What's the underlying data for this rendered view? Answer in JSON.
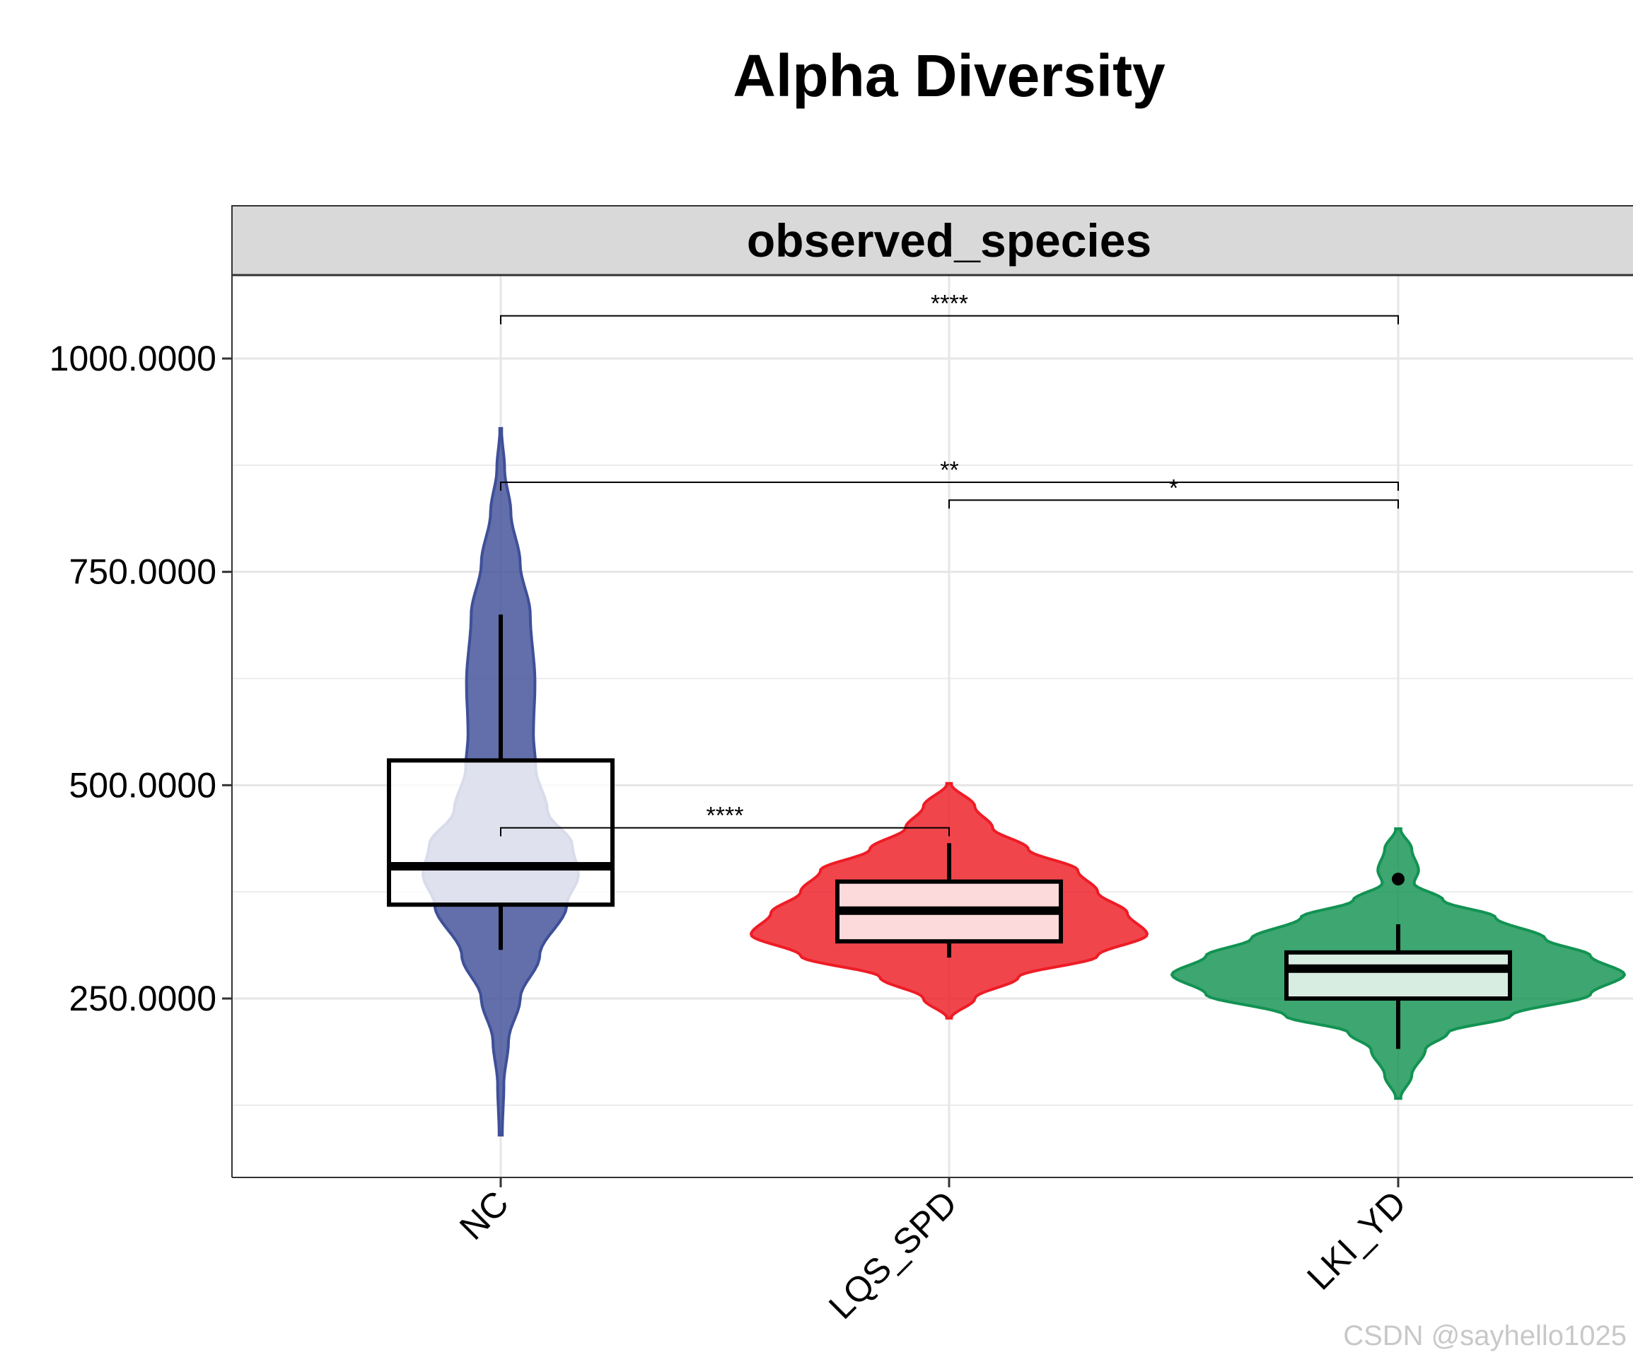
{
  "title": "Alpha Diversity",
  "watermark": "CSDN @sayhello1025",
  "chart_data": {
    "type": "violin",
    "title": "Alpha Diversity",
    "facet_label": "observed_species",
    "xlabel": "",
    "ylabel": "",
    "ylim": [
      47,
      1105
    ],
    "yticks": [
      250,
      500,
      750,
      1000
    ],
    "ytick_labels": [
      "250.0000",
      "500.0000",
      "750.0000",
      "1000.0000"
    ],
    "grid": true,
    "legend": "none",
    "categories": [
      "NC",
      "LQS_SPD",
      "LKI_YD"
    ],
    "colors": [
      "#3f4f98",
      "#ee1c25",
      "#129352"
    ],
    "groups": [
      {
        "name": "NC",
        "violin_min": 90,
        "violin_max": 918,
        "density": [
          [
            90,
            0.02
          ],
          [
            150,
            0.04
          ],
          [
            200,
            0.1
          ],
          [
            250,
            0.25
          ],
          [
            300,
            0.5
          ],
          [
            360,
            0.85
          ],
          [
            395,
            1.0
          ],
          [
            430,
            0.92
          ],
          [
            470,
            0.6
          ],
          [
            520,
            0.45
          ],
          [
            560,
            0.42
          ],
          [
            620,
            0.44
          ],
          [
            700,
            0.38
          ],
          [
            760,
            0.25
          ],
          [
            820,
            0.13
          ],
          [
            870,
            0.05
          ],
          [
            918,
            0.01
          ]
        ],
        "box": {
          "whisker_low": 307,
          "q1": 360,
          "median": 405,
          "q3": 529,
          "whisker_high": 700
        },
        "outliers": []
      },
      {
        "name": "LQS_SPD",
        "violin_min": 227,
        "violin_max": 502,
        "density": [
          [
            227,
            0.01
          ],
          [
            250,
            0.13
          ],
          [
            275,
            0.35
          ],
          [
            300,
            0.75
          ],
          [
            325,
            1.0
          ],
          [
            350,
            0.9
          ],
          [
            375,
            0.75
          ],
          [
            400,
            0.65
          ],
          [
            425,
            0.4
          ],
          [
            450,
            0.22
          ],
          [
            475,
            0.13
          ],
          [
            502,
            0.01
          ]
        ],
        "box": {
          "whisker_low": 298,
          "q1": 317,
          "median": 353,
          "q3": 387,
          "whisker_high": 432
        },
        "outliers": []
      },
      {
        "name": "LKI_YD",
        "violin_min": 133,
        "violin_max": 449,
        "density": [
          [
            133,
            0.01
          ],
          [
            160,
            0.06
          ],
          [
            190,
            0.12
          ],
          [
            210,
            0.22
          ],
          [
            230,
            0.5
          ],
          [
            255,
            0.85
          ],
          [
            278,
            1.0
          ],
          [
            300,
            0.85
          ],
          [
            320,
            0.65
          ],
          [
            345,
            0.43
          ],
          [
            365,
            0.2
          ],
          [
            385,
            0.07
          ],
          [
            400,
            0.09
          ],
          [
            425,
            0.06
          ],
          [
            449,
            0.01
          ]
        ],
        "box": {
          "whisker_low": 191,
          "q1": 250,
          "median": 285,
          "q3": 304,
          "whisker_high": 337
        },
        "outliers": [
          390
        ]
      }
    ],
    "comparisons": [
      {
        "from": "NC",
        "to": "LKI_YD",
        "y": 1050,
        "label": "****"
      },
      {
        "from": "NC",
        "to": "LKI_YD",
        "y": 855,
        "label": "**"
      },
      {
        "from": "LQS_SPD",
        "to": "LKI_YD",
        "y": 834,
        "label": "*"
      },
      {
        "from": "NC",
        "to": "LQS_SPD",
        "y": 450,
        "label": "****"
      }
    ]
  }
}
